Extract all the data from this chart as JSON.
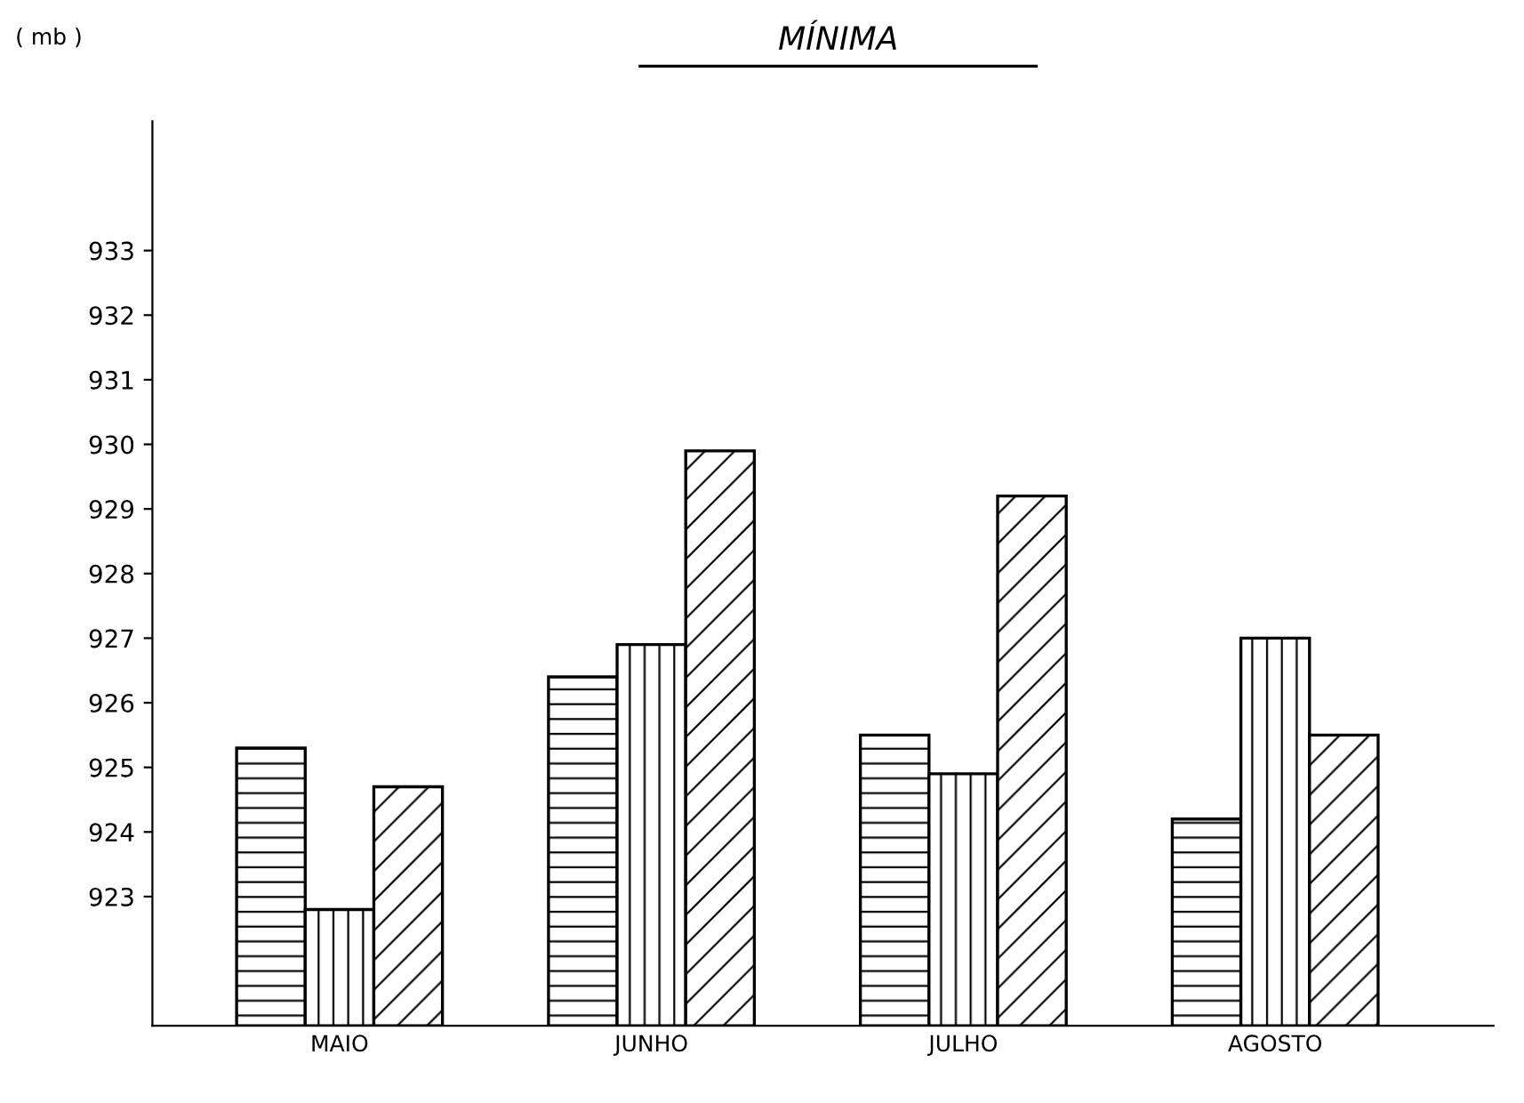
{
  "chart_data": {
    "type": "bar",
    "title": "MÍNIMA",
    "ylabel": "( mb )",
    "categories": [
      "MAIO",
      "JUNHO",
      "JULHO",
      "AGOSTO"
    ],
    "series": [
      {
        "color": "#000000",
        "values": [
          925.3,
          926.4,
          925.5,
          924.2
        ]
      },
      {
        "color": "#000000",
        "values": [
          922.8,
          926.9,
          924.9,
          927.0
        ]
      },
      {
        "color": "#000000",
        "values": [
          924.7,
          929.9,
          929.2,
          925.5
        ]
      }
    ],
    "ylim": [
      921,
      935
    ],
    "yticks": [
      923,
      924,
      925,
      926,
      927,
      928,
      929,
      930,
      931,
      932,
      933
    ],
    "grid": false
  }
}
